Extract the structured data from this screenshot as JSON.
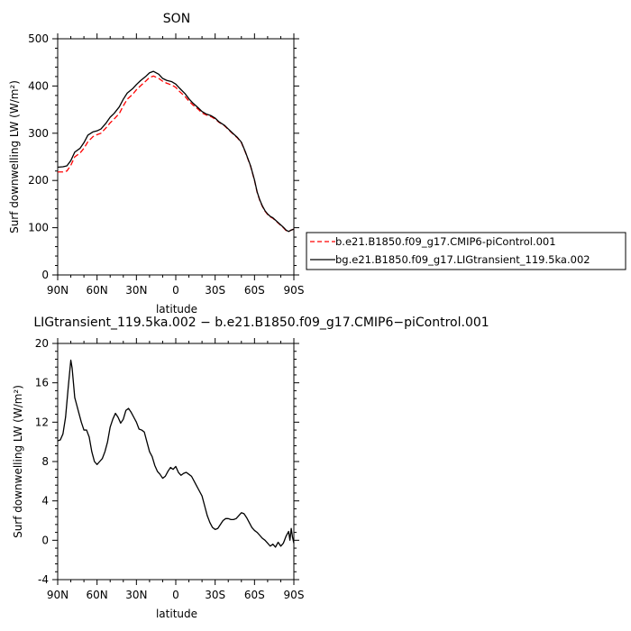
{
  "chart_data": [
    {
      "type": "line",
      "title": "SON",
      "xlabel": "latitude",
      "ylabel": "Surf downwelling LW (W/m²)",
      "xlim": [
        90,
        -90
      ],
      "ylim": [
        0,
        500
      ],
      "xtick_values": [
        90,
        60,
        30,
        0,
        -30,
        -60,
        -90
      ],
      "xtick_labels": [
        "90N",
        "60N",
        "30N",
        "0",
        "30S",
        "60S",
        "90S"
      ],
      "yticks": [
        0,
        100,
        200,
        300,
        400,
        500
      ],
      "legend_position": "outside-right",
      "series": [
        {
          "name": "b.e21.B1850.f09_g17.CMIP6-piControl.001",
          "color": "#ff0000",
          "dash": "dashed",
          "x": [
            90,
            86,
            83,
            80,
            77,
            73,
            70,
            67,
            63,
            60,
            57,
            53,
            50,
            47,
            43,
            40,
            37,
            33,
            30,
            27,
            23,
            20,
            17,
            13,
            10,
            7,
            3,
            0,
            -3,
            -7,
            -10,
            -13,
            -17,
            -20,
            -23,
            -27,
            -30,
            -33,
            -37,
            -40,
            -43,
            -47,
            -50,
            -53,
            -57,
            -60,
            -62,
            -64,
            -66,
            -68,
            -70,
            -72,
            -74,
            -76,
            -78,
            -80,
            -82,
            -84,
            -86,
            -88,
            -90
          ],
          "y": [
            218,
            218,
            220,
            232,
            250,
            258,
            268,
            282,
            293,
            297,
            300,
            312,
            322,
            330,
            342,
            358,
            372,
            382,
            392,
            400,
            410,
            418,
            421,
            416,
            410,
            406,
            402,
            397,
            388,
            378,
            368,
            360,
            351,
            343,
            339,
            335,
            330,
            323,
            316,
            308,
            300,
            290,
            280,
            260,
            230,
            200,
            175,
            158,
            145,
            135,
            128,
            123,
            120,
            115,
            110,
            105,
            100,
            94,
            92,
            95,
            97
          ]
        },
        {
          "name": "bg.e21.B1850.f09_g17.LIGtransient_119.5ka.002",
          "color": "#000000",
          "dash": "solid",
          "x": [
            90,
            86,
            83,
            80,
            77,
            73,
            70,
            67,
            63,
            60,
            57,
            53,
            50,
            47,
            43,
            40,
            37,
            33,
            30,
            27,
            23,
            20,
            17,
            13,
            10,
            7,
            3,
            0,
            -3,
            -7,
            -10,
            -13,
            -17,
            -20,
            -23,
            -27,
            -30,
            -33,
            -37,
            -40,
            -43,
            -47,
            -50,
            -53,
            -57,
            -60,
            -62,
            -64,
            -66,
            -68,
            -70,
            -72,
            -74,
            -76,
            -78,
            -80,
            -82,
            -84,
            -86,
            -88,
            -90
          ],
          "y": [
            228,
            229,
            231,
            242,
            260,
            268,
            280,
            296,
            303,
            305,
            309,
            322,
            334,
            342,
            356,
            372,
            385,
            394,
            403,
            411,
            420,
            428,
            431,
            425,
            416,
            412,
            409,
            404,
            395,
            384,
            373,
            364,
            354,
            346,
            341,
            337,
            332,
            324,
            317,
            309,
            301,
            291,
            281,
            261,
            231,
            201,
            176,
            159,
            146,
            136,
            129,
            124,
            121,
            116,
            111,
            106,
            101,
            95,
            92,
            95,
            97
          ]
        }
      ]
    },
    {
      "type": "line",
      "title": "LIGtransient_119.5ka.002 − b.e21.B1850.f09_g17.CMIP6−piControl.001",
      "xlabel": "latitude",
      "ylabel": "Surf downwelling LW (W/m²)",
      "xlim": [
        90,
        -90
      ],
      "ylim": [
        -4,
        20
      ],
      "xtick_values": [
        90,
        60,
        30,
        0,
        -30,
        -60,
        -90
      ],
      "xtick_labels": [
        "90N",
        "60N",
        "30N",
        "0",
        "30S",
        "60S",
        "90S"
      ],
      "yticks": [
        -4,
        0,
        4,
        8,
        12,
        16,
        20
      ],
      "series": [
        {
          "name": "",
          "color": "#000000",
          "dash": "solid",
          "x": [
            90,
            88,
            86,
            84,
            82,
            80,
            79,
            78,
            77,
            76,
            74,
            72,
            70,
            68,
            66,
            64,
            62,
            60,
            58,
            56,
            54,
            52,
            50,
            48,
            46,
            44,
            42,
            40,
            38,
            36,
            34,
            32,
            30,
            28,
            26,
            24,
            22,
            20,
            18,
            16,
            14,
            12,
            10,
            8,
            6,
            4,
            2,
            0,
            -2,
            -4,
            -6,
            -8,
            -10,
            -12,
            -14,
            -16,
            -18,
            -20,
            -22,
            -24,
            -26,
            -28,
            -30,
            -32,
            -34,
            -36,
            -38,
            -40,
            -42,
            -44,
            -46,
            -48,
            -50,
            -52,
            -54,
            -56,
            -58,
            -60,
            -62,
            -64,
            -66,
            -68,
            -70,
            -72,
            -74,
            -76,
            -78,
            -80,
            -82,
            -84,
            -86,
            -87,
            -88,
            -89,
            -90
          ],
          "y": [
            10.1,
            10.2,
            10.8,
            12.5,
            15.5,
            18.3,
            17.5,
            16.0,
            14.5,
            14.0,
            13.0,
            12.0,
            11.2,
            11.2,
            10.5,
            9.0,
            8.0,
            7.7,
            8.0,
            8.3,
            9.0,
            10.0,
            11.5,
            12.3,
            12.9,
            12.5,
            11.9,
            12.3,
            13.2,
            13.4,
            13.0,
            12.5,
            12.0,
            11.3,
            11.2,
            11.0,
            10.0,
            9.0,
            8.5,
            7.6,
            7.0,
            6.7,
            6.3,
            6.5,
            7.0,
            7.4,
            7.2,
            7.5,
            6.9,
            6.6,
            6.8,
            6.9,
            6.7,
            6.5,
            6.0,
            5.5,
            5.0,
            4.5,
            3.5,
            2.5,
            1.8,
            1.3,
            1.1,
            1.2,
            1.6,
            2.0,
            2.2,
            2.2,
            2.1,
            2.1,
            2.2,
            2.5,
            2.8,
            2.7,
            2.3,
            1.8,
            1.3,
            1.0,
            0.8,
            0.5,
            0.2,
            0.0,
            -0.3,
            -0.6,
            -0.4,
            -0.7,
            -0.2,
            -0.6,
            -0.3,
            0.4,
            0.9,
            0.0,
            1.2,
            0.3,
            -0.3
          ]
        }
      ]
    }
  ]
}
